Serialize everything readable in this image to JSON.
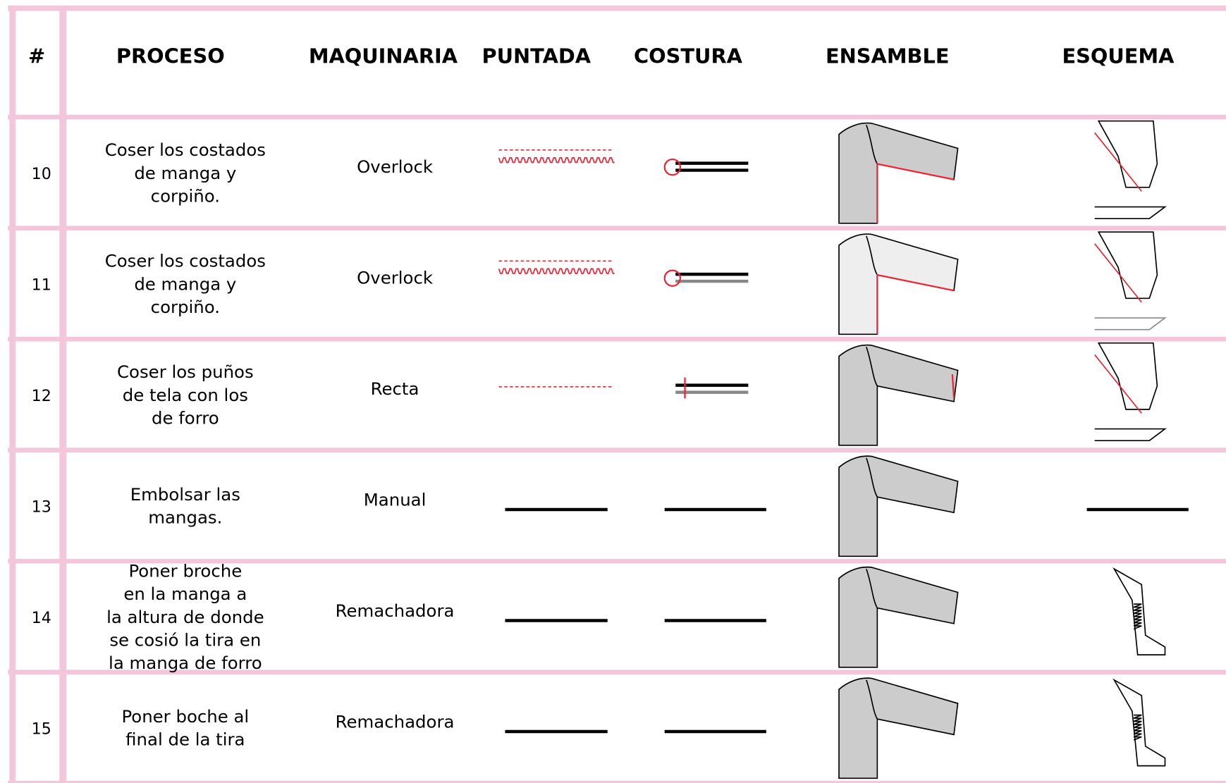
{
  "header": {
    "columns": [
      "#",
      "PROCESO",
      "MAQUINARIA",
      "PUNTADA",
      "COSTURA",
      "ENSAMBLE",
      "ESQUEMA"
    ]
  },
  "rows": [
    {
      "number": "10",
      "proceso": [
        "Coser los costados",
        "de manga y",
        "corpiño."
      ],
      "maquinaria": "Overlock"
    },
    {
      "number": "11",
      "proceso": [
        "Coser los costados",
        "de manga y",
        "corpiño."
      ],
      "maquinaria": "Overlock"
    },
    {
      "number": "12",
      "proceso": [
        "Coser los puños",
        "de tela con los",
        "de forro"
      ],
      "maquinaria": "Recta"
    },
    {
      "number": "13",
      "proceso": [
        "Embolsar las",
        "mangas."
      ],
      "maquinaria": "Manual"
    },
    {
      "number": "14",
      "proceso": [
        "Poner broche",
        "en la manga a",
        "la altura de donde",
        "se cosió la tira en",
        "la manga de forro"
      ],
      "maquinaria": "Remachadora"
    },
    {
      "number": "15",
      "proceso": [
        "Poner boche al",
        "final de la tira"
      ],
      "maquinaria": "Remachadora"
    }
  ]
}
